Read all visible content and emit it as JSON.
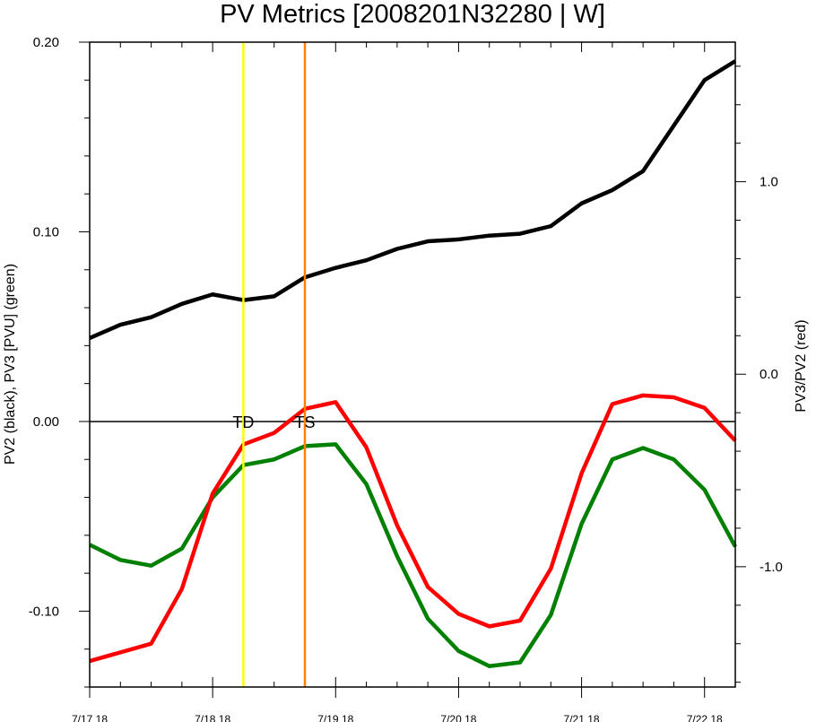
{
  "chart_data": {
    "type": "line",
    "title": "PV Metrics [2008201N32280 | W]",
    "ylabel": "PV2 (black), PV3 [PVU] (green)",
    "y2label": "PV3/PV2 (red)",
    "ylim": [
      -0.14,
      0.2
    ],
    "y2lim": [
      -1.625,
      1.725
    ],
    "xlim": [
      0,
      126
    ],
    "x_ticks": [
      {
        "x": 0,
        "label": "7/17 18"
      },
      {
        "x": 24,
        "label": "7/18 18"
      },
      {
        "x": 48,
        "label": "7/19 18"
      },
      {
        "x": 72,
        "label": "7/20 18"
      },
      {
        "x": 96,
        "label": "7/21 18"
      },
      {
        "x": 120,
        "label": "7/22 18"
      }
    ],
    "y_ticks": [
      {
        "value": 0.2,
        "label": "0.20"
      },
      {
        "value": 0.1,
        "label": "0.10"
      },
      {
        "value": 0.0,
        "label": "0.00"
      },
      {
        "value": -0.1,
        "label": "-0.10"
      }
    ],
    "y2_ticks": [
      {
        "value": 1.0,
        "label": "1.0"
      },
      {
        "value": 0.0,
        "label": "0.0"
      },
      {
        "value": -1.0,
        "label": "-1.0"
      }
    ],
    "x": [
      0,
      6,
      12,
      18,
      24,
      30,
      36,
      42,
      48,
      54,
      60,
      66,
      72,
      78,
      84,
      90,
      96,
      102,
      108,
      114,
      120,
      126
    ],
    "series": [
      {
        "name": "PV2",
        "axis": "left",
        "color": "#000000",
        "values": [
          0.044,
          0.051,
          0.055,
          0.062,
          0.067,
          0.064,
          0.066,
          0.076,
          0.081,
          0.085,
          0.091,
          0.095,
          0.096,
          0.098,
          0.099,
          0.103,
          0.115,
          0.122,
          0.132,
          0.156,
          0.18,
          0.19
        ]
      },
      {
        "name": "PV3",
        "axis": "left",
        "color": "#008000",
        "values": [
          -0.065,
          -0.073,
          -0.076,
          -0.067,
          -0.04,
          -0.023,
          -0.02,
          -0.013,
          -0.012,
          -0.033,
          -0.071,
          -0.104,
          -0.121,
          -0.129,
          -0.127,
          -0.102,
          -0.054,
          -0.02,
          -0.014,
          -0.02,
          -0.036,
          -0.066
        ]
      },
      {
        "name": "PV3/PV2",
        "axis": "right",
        "color": "#ff0000",
        "values": [
          -1.49,
          -1.445,
          -1.4,
          -1.115,
          -0.62,
          -0.365,
          -0.305,
          -0.18,
          -0.145,
          -0.38,
          -0.785,
          -1.105,
          -1.245,
          -1.31,
          -1.28,
          -1.01,
          -0.515,
          -0.155,
          -0.11,
          -0.12,
          -0.175,
          -0.345
        ]
      }
    ],
    "zero_line": 0.0,
    "markers": [
      {
        "label": "TD",
        "x": 30,
        "color": "#ffff00"
      },
      {
        "label": "TS",
        "x": 42,
        "color": "#ff8000"
      }
    ]
  }
}
